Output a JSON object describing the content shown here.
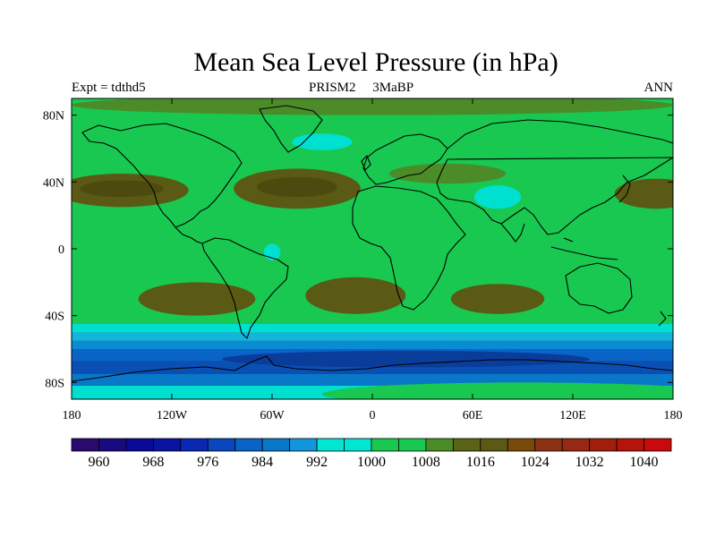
{
  "title": "Mean Sea Level Pressure (in hPa)",
  "subtitle": {
    "left": "Expt = tdthd5",
    "center": "PRISM2     3MaBP",
    "right": "ANN"
  },
  "map": {
    "projection": "cylindrical equidistant",
    "lon_range": [
      -180,
      180
    ],
    "lat_range": [
      -90,
      90
    ],
    "x_ticks": [
      {
        "lon": -180,
        "label": "180"
      },
      {
        "lon": -120,
        "label": "120W"
      },
      {
        "lon": -60,
        "label": "60W"
      },
      {
        "lon": 0,
        "label": "0"
      },
      {
        "lon": 60,
        "label": "60E"
      },
      {
        "lon": 120,
        "label": "120E"
      },
      {
        "lon": 180,
        "label": "180"
      }
    ],
    "y_ticks": [
      {
        "lat": 80,
        "label": "80N"
      },
      {
        "lat": 40,
        "label": "40N"
      },
      {
        "lat": 0,
        "label": "0"
      },
      {
        "lat": -40,
        "label": "40S"
      },
      {
        "lat": -80,
        "label": "80S"
      }
    ],
    "background_level_color": "#19c850",
    "field_regions": [
      {
        "name": "north-pacific-high",
        "lon": -150,
        "lat": 35,
        "rlon": 40,
        "rlat": 10,
        "color": "#5a5a14"
      },
      {
        "name": "north-pacific-high-inner",
        "lon": -150,
        "lat": 36,
        "rlon": 25,
        "rlat": 5,
        "color": "#4d4a10"
      },
      {
        "name": "north-atlantic-high",
        "lon": -45,
        "lat": 36,
        "rlon": 38,
        "rlat": 12,
        "color": "#5a5a14"
      },
      {
        "name": "north-atlantic-high-inner",
        "lon": -45,
        "lat": 37,
        "rlon": 24,
        "rlat": 6,
        "color": "#4d4a10"
      },
      {
        "name": "east-asian-high",
        "lon": 45,
        "lat": 45,
        "rlon": 35,
        "rlat": 6,
        "color": "#4b8c28"
      },
      {
        "name": "west-pacific-high",
        "lon": 170,
        "lat": 33,
        "rlon": 25,
        "rlat": 9,
        "color": "#5a5a14"
      },
      {
        "name": "south-pacific-high",
        "lon": -105,
        "lat": -30,
        "rlon": 35,
        "rlat": 10,
        "color": "#5a5a14"
      },
      {
        "name": "south-atlantic-high",
        "lon": -10,
        "lat": -28,
        "rlon": 30,
        "rlat": 11,
        "color": "#5a5a14"
      },
      {
        "name": "indian-ocean-high",
        "lon": 75,
        "lat": -30,
        "rlon": 28,
        "rlat": 9,
        "color": "#5a5a14"
      },
      {
        "name": "arctic-ridge",
        "lon": 0,
        "lat": 86,
        "rlon": 180,
        "rlat": 6,
        "color": "#4b8c28"
      },
      {
        "name": "greenland-low",
        "lon": -30,
        "lat": 64,
        "rlon": 18,
        "rlat": 5,
        "color": "#00e0d0"
      },
      {
        "name": "asian-thermal-low",
        "lon": 75,
        "lat": 31,
        "rlon": 14,
        "rlat": 7,
        "color": "#00e0d0"
      },
      {
        "name": "amazon-low",
        "lon": -60,
        "lat": -2,
        "rlon": 5,
        "rlat": 5,
        "color": "#00e0d0"
      },
      {
        "name": "antarctic-interior-high",
        "lon": 90,
        "lat": -87,
        "rlon": 120,
        "rlat": 7,
        "color": "#19c850"
      }
    ],
    "southern_bands": [
      {
        "lat_top": -45,
        "lat_bottom": -50,
        "color": "#00e0d0"
      },
      {
        "lat_top": -50,
        "lat_bottom": -55,
        "color": "#14b4dc"
      },
      {
        "lat_top": -55,
        "lat_bottom": -60,
        "color": "#0a8cd2"
      },
      {
        "lat_top": -60,
        "lat_bottom": -67,
        "color": "#0a64c8"
      },
      {
        "lat_top": -67,
        "lat_bottom": -75,
        "color": "#0a50b4"
      },
      {
        "lat_top": -75,
        "lat_bottom": -82,
        "color": "#0a78c8"
      },
      {
        "lat_top": -82,
        "lat_bottom": -90,
        "color": "#00e0d0"
      }
    ],
    "southern_low_core": {
      "lon": 20,
      "lat": -66,
      "rlon": 110,
      "rlat": 5,
      "color": "#0a3c9a"
    }
  },
  "colorbar": {
    "colors": [
      "#2a0a6e",
      "#1a0a80",
      "#0a0a96",
      "#0a14a0",
      "#0a28b4",
      "#0a46be",
      "#0a64c8",
      "#0a78c8",
      "#1496dc",
      "#00e6d2",
      "#00e6d2",
      "#19c850",
      "#19c850",
      "#4b8c28",
      "#5a6414",
      "#5a5a14",
      "#784b0a",
      "#8c3214",
      "#962814",
      "#a01e0a",
      "#b4140a",
      "#c80a0a"
    ],
    "labels": [
      "960",
      "968",
      "976",
      "984",
      "992",
      "1000",
      "1008",
      "1016",
      "1024",
      "1032",
      "1040"
    ]
  }
}
